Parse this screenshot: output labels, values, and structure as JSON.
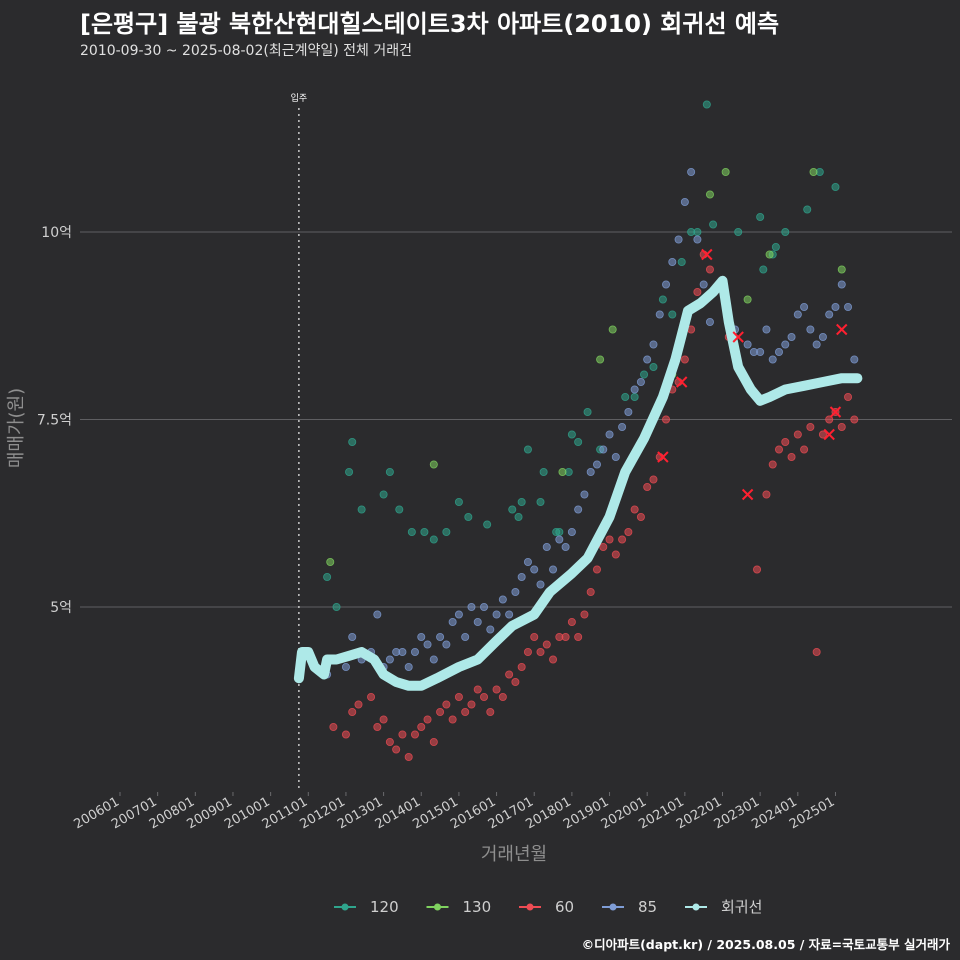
{
  "title": "[은평구] 불광 북한산현대힐스테이트3차 아파트(2010) 회귀선 예측",
  "subtitle": "2010-09-30 ~ 2025-08-02(최근계약일) 전체 거래건",
  "caption": "©디아파트(dapt.kr) / 2025.08.05 / 자료=국토교통부 실거래가",
  "colors": {
    "background": "#2b2b2d",
    "grid": "#5f5f62",
    "series_120": "#2fa58d",
    "series_130": "#7fd25f",
    "series_60": "#ee4c54",
    "series_85": "#7f9dd6",
    "regression": "#aee9e8",
    "marker_x": "#ff2030"
  },
  "chart_data": {
    "type": "scatter",
    "title": "[은평구] 불광 북한산현대힐스테이트3차 아파트(2010) 회귀선 예측",
    "xlabel": "거래년월",
    "ylabel": "매매가(원)",
    "x_range": [
      "2006-01",
      "2025-12"
    ],
    "y_range": [
      2.55,
      11.8
    ],
    "y_unit": "억",
    "x_tick_labels": [
      "200601",
      "200701",
      "200801",
      "200901",
      "201001",
      "201101",
      "201201",
      "201301",
      "201401",
      "201501",
      "201601",
      "201701",
      "201801",
      "201901",
      "202001",
      "202101",
      "202201",
      "202301",
      "202401",
      "202501"
    ],
    "y_ticks": [
      {
        "value": 5,
        "label": "5억"
      },
      {
        "value": 7.5,
        "label": "7.5억"
      },
      {
        "value": 10,
        "label": "10억"
      }
    ],
    "grid": true,
    "vline": {
      "x": "2010-10",
      "label": "입주"
    },
    "legend": {
      "position": "bottom",
      "entries": [
        "120",
        "130",
        "60",
        "85",
        "회귀선"
      ]
    },
    "series": [
      {
        "name": "120",
        "points": [
          [
            "2011-07",
            5.4
          ],
          [
            "2011-10",
            5.0
          ],
          [
            "2012-02",
            6.8
          ],
          [
            "2012-03",
            7.2
          ],
          [
            "2012-06",
            6.3
          ],
          [
            "2013-01",
            6.5
          ],
          [
            "2013-03",
            6.8
          ],
          [
            "2013-06",
            6.3
          ],
          [
            "2013-10",
            6.0
          ],
          [
            "2014-02",
            6.0
          ],
          [
            "2014-05",
            5.9
          ],
          [
            "2014-09",
            6.0
          ],
          [
            "2015-01",
            6.4
          ],
          [
            "2015-04",
            6.2
          ],
          [
            "2015-10",
            6.1
          ],
          [
            "2016-06",
            6.3
          ],
          [
            "2016-08",
            6.2
          ],
          [
            "2016-09",
            6.4
          ],
          [
            "2016-11",
            7.1
          ],
          [
            "2017-03",
            6.4
          ],
          [
            "2017-04",
            6.8
          ],
          [
            "2017-08",
            6.0
          ],
          [
            "2017-09",
            6.0
          ],
          [
            "2017-12",
            6.8
          ],
          [
            "2018-01",
            7.3
          ],
          [
            "2018-03",
            7.2
          ],
          [
            "2018-06",
            7.6
          ],
          [
            "2018-10",
            7.1
          ],
          [
            "2019-09",
            7.8
          ],
          [
            "2019-12",
            8.1
          ],
          [
            "2020-03",
            8.2
          ],
          [
            "2020-06",
            9.1
          ],
          [
            "2020-09",
            8.9
          ],
          [
            "2020-12",
            9.6
          ],
          [
            "2021-03",
            10.0
          ],
          [
            "2021-05",
            10.0
          ],
          [
            "2021-10",
            10.1
          ],
          [
            "2022-06",
            10.0
          ],
          [
            "2023-01",
            10.2
          ],
          [
            "2023-02",
            9.5
          ],
          [
            "2023-06",
            9.8
          ],
          [
            "2023-09",
            10.0
          ],
          [
            "2024-04",
            10.3
          ],
          [
            "2024-08",
            10.8
          ],
          [
            "2025-01",
            10.6
          ],
          [
            "2021-08",
            11.7
          ],
          [
            "2023-05",
            9.7
          ],
          [
            "2019-06",
            7.8
          ]
        ]
      },
      {
        "name": "130",
        "points": [
          [
            "2011-08",
            5.6
          ],
          [
            "2014-05",
            6.9
          ],
          [
            "2017-10",
            6.8
          ],
          [
            "2018-10",
            8.3
          ],
          [
            "2019-02",
            8.7
          ],
          [
            "2020-09",
            8.1
          ],
          [
            "2021-09",
            10.5
          ],
          [
            "2022-02",
            10.8
          ],
          [
            "2022-09",
            9.1
          ],
          [
            "2023-04",
            9.7
          ],
          [
            "2024-06",
            10.8
          ],
          [
            "2025-03",
            9.5
          ]
        ]
      },
      {
        "name": "60",
        "points": [
          [
            "2011-09",
            3.4
          ],
          [
            "2012-01",
            3.3
          ],
          [
            "2012-03",
            3.6
          ],
          [
            "2012-05",
            3.7
          ],
          [
            "2012-09",
            3.8
          ],
          [
            "2012-11",
            3.4
          ],
          [
            "2013-01",
            3.5
          ],
          [
            "2013-03",
            3.2
          ],
          [
            "2013-05",
            3.1
          ],
          [
            "2013-07",
            3.3
          ],
          [
            "2013-09",
            3.0
          ],
          [
            "2013-11",
            3.3
          ],
          [
            "2014-01",
            3.4
          ],
          [
            "2014-03",
            3.5
          ],
          [
            "2014-05",
            3.2
          ],
          [
            "2014-07",
            3.6
          ],
          [
            "2014-09",
            3.7
          ],
          [
            "2014-11",
            3.5
          ],
          [
            "2015-01",
            3.8
          ],
          [
            "2015-03",
            3.6
          ],
          [
            "2015-05",
            3.7
          ],
          [
            "2015-07",
            3.9
          ],
          [
            "2015-09",
            3.8
          ],
          [
            "2015-11",
            3.6
          ],
          [
            "2016-01",
            3.9
          ],
          [
            "2016-03",
            3.8
          ],
          [
            "2016-05",
            4.1
          ],
          [
            "2016-07",
            4.0
          ],
          [
            "2016-09",
            4.2
          ],
          [
            "2016-11",
            4.4
          ],
          [
            "2017-01",
            4.6
          ],
          [
            "2017-03",
            4.4
          ],
          [
            "2017-05",
            4.5
          ],
          [
            "2017-07",
            4.3
          ],
          [
            "2017-09",
            4.6
          ],
          [
            "2017-11",
            4.6
          ],
          [
            "2018-01",
            4.8
          ],
          [
            "2018-03",
            4.6
          ],
          [
            "2018-05",
            4.9
          ],
          [
            "2018-07",
            5.2
          ],
          [
            "2018-09",
            5.5
          ],
          [
            "2018-11",
            5.8
          ],
          [
            "2019-01",
            5.9
          ],
          [
            "2019-03",
            5.7
          ],
          [
            "2019-05",
            5.9
          ],
          [
            "2019-07",
            6.0
          ],
          [
            "2019-09",
            6.3
          ],
          [
            "2019-11",
            6.2
          ],
          [
            "2020-01",
            6.6
          ],
          [
            "2020-03",
            6.7
          ],
          [
            "2020-05",
            7.0
          ],
          [
            "2020-07",
            7.5
          ],
          [
            "2020-09",
            7.9
          ],
          [
            "2020-11",
            8.0
          ],
          [
            "2021-01",
            8.3
          ],
          [
            "2021-03",
            8.7
          ],
          [
            "2021-05",
            9.2
          ],
          [
            "2021-07",
            9.7
          ],
          [
            "2021-09",
            9.5
          ],
          [
            "2022-03",
            8.6
          ],
          [
            "2022-12",
            5.5
          ],
          [
            "2023-03",
            6.5
          ],
          [
            "2023-05",
            6.9
          ],
          [
            "2023-07",
            7.1
          ],
          [
            "2023-09",
            7.2
          ],
          [
            "2023-11",
            7.0
          ],
          [
            "2024-01",
            7.3
          ],
          [
            "2024-03",
            7.1
          ],
          [
            "2024-05",
            7.4
          ],
          [
            "2024-07",
            4.4
          ],
          [
            "2024-09",
            7.3
          ],
          [
            "2024-11",
            7.5
          ],
          [
            "2025-01",
            7.6
          ],
          [
            "2025-03",
            7.4
          ],
          [
            "2025-05",
            7.8
          ],
          [
            "2025-07",
            7.5
          ]
        ]
      },
      {
        "name": "85",
        "points": [
          [
            "2011-07",
            4.1
          ],
          [
            "2011-11",
            4.3
          ],
          [
            "2012-01",
            4.2
          ],
          [
            "2012-03",
            4.6
          ],
          [
            "2012-06",
            4.3
          ],
          [
            "2012-09",
            4.4
          ],
          [
            "2012-11",
            4.9
          ],
          [
            "2013-01",
            4.2
          ],
          [
            "2013-03",
            4.3
          ],
          [
            "2013-05",
            4.4
          ],
          [
            "2013-07",
            4.4
          ],
          [
            "2013-09",
            4.2
          ],
          [
            "2013-11",
            4.4
          ],
          [
            "2014-01",
            4.6
          ],
          [
            "2014-03",
            4.5
          ],
          [
            "2014-05",
            4.3
          ],
          [
            "2014-07",
            4.6
          ],
          [
            "2014-09",
            4.5
          ],
          [
            "2014-11",
            4.8
          ],
          [
            "2015-01",
            4.9
          ],
          [
            "2015-03",
            4.6
          ],
          [
            "2015-05",
            5.0
          ],
          [
            "2015-07",
            4.8
          ],
          [
            "2015-09",
            5.0
          ],
          [
            "2015-11",
            4.7
          ],
          [
            "2016-01",
            4.9
          ],
          [
            "2016-03",
            5.1
          ],
          [
            "2016-05",
            4.9
          ],
          [
            "2016-07",
            5.2
          ],
          [
            "2016-09",
            5.4
          ],
          [
            "2016-11",
            5.6
          ],
          [
            "2017-01",
            5.5
          ],
          [
            "2017-03",
            5.3
          ],
          [
            "2017-05",
            5.8
          ],
          [
            "2017-07",
            5.5
          ],
          [
            "2017-09",
            5.9
          ],
          [
            "2017-11",
            5.8
          ],
          [
            "2018-01",
            6.0
          ],
          [
            "2018-03",
            6.3
          ],
          [
            "2018-05",
            6.5
          ],
          [
            "2018-07",
            6.8
          ],
          [
            "2018-09",
            6.9
          ],
          [
            "2018-11",
            7.1
          ],
          [
            "2019-01",
            7.3
          ],
          [
            "2019-03",
            7.0
          ],
          [
            "2019-05",
            7.4
          ],
          [
            "2019-07",
            7.6
          ],
          [
            "2019-09",
            7.9
          ],
          [
            "2019-11",
            8.0
          ],
          [
            "2020-01",
            8.3
          ],
          [
            "2020-03",
            8.5
          ],
          [
            "2020-05",
            8.9
          ],
          [
            "2020-07",
            9.3
          ],
          [
            "2020-09",
            9.6
          ],
          [
            "2020-11",
            9.9
          ],
          [
            "2021-01",
            10.4
          ],
          [
            "2021-03",
            10.8
          ],
          [
            "2021-05",
            9.9
          ],
          [
            "2021-07",
            9.3
          ],
          [
            "2021-09",
            8.8
          ],
          [
            "2022-05",
            8.7
          ],
          [
            "2022-09",
            8.5
          ],
          [
            "2022-11",
            8.4
          ],
          [
            "2023-01",
            8.4
          ],
          [
            "2023-03",
            8.7
          ],
          [
            "2023-05",
            8.3
          ],
          [
            "2023-07",
            8.4
          ],
          [
            "2023-09",
            8.5
          ],
          [
            "2023-11",
            8.6
          ],
          [
            "2024-01",
            8.9
          ],
          [
            "2024-03",
            9.0
          ],
          [
            "2024-05",
            8.7
          ],
          [
            "2024-07",
            8.5
          ],
          [
            "2024-09",
            8.6
          ],
          [
            "2024-11",
            8.9
          ],
          [
            "2025-01",
            9.0
          ],
          [
            "2025-03",
            9.3
          ],
          [
            "2025-05",
            9.0
          ],
          [
            "2025-07",
            8.3
          ]
        ]
      },
      {
        "name": "회귀선",
        "points": [
          [
            "2010-10",
            4.05
          ],
          [
            "2010-11",
            4.4
          ],
          [
            "2011-01",
            4.4
          ],
          [
            "2011-03",
            4.2
          ],
          [
            "2011-06",
            4.1
          ],
          [
            "2011-07",
            4.3
          ],
          [
            "2011-10",
            4.3
          ],
          [
            "2012-02",
            4.35
          ],
          [
            "2012-06",
            4.4
          ],
          [
            "2012-10",
            4.3
          ],
          [
            "2013-01",
            4.1
          ],
          [
            "2013-05",
            4.0
          ],
          [
            "2013-09",
            3.95
          ],
          [
            "2014-01",
            3.95
          ],
          [
            "2014-06",
            4.05
          ],
          [
            "2015-01",
            4.2
          ],
          [
            "2015-07",
            4.3
          ],
          [
            "2016-01",
            4.55
          ],
          [
            "2016-06",
            4.75
          ],
          [
            "2017-01",
            4.9
          ],
          [
            "2017-06",
            5.2
          ],
          [
            "2018-01",
            5.45
          ],
          [
            "2018-06",
            5.65
          ],
          [
            "2019-01",
            6.2
          ],
          [
            "2019-06",
            6.8
          ],
          [
            "2019-12",
            7.25
          ],
          [
            "2020-06",
            7.8
          ],
          [
            "2020-10",
            8.3
          ],
          [
            "2021-02",
            8.95
          ],
          [
            "2021-06",
            9.05
          ],
          [
            "2021-10",
            9.2
          ],
          [
            "2022-01",
            9.35
          ],
          [
            "2022-03",
            8.8
          ],
          [
            "2022-06",
            8.2
          ],
          [
            "2022-10",
            7.9
          ],
          [
            "2023-01",
            7.75
          ],
          [
            "2023-04",
            7.8
          ],
          [
            "2023-09",
            7.9
          ],
          [
            "2024-03",
            7.95
          ],
          [
            "2024-09",
            8.0
          ],
          [
            "2025-03",
            8.05
          ],
          [
            "2025-08",
            8.05
          ]
        ]
      }
    ],
    "x_markers": [
      [
        "2020-12",
        8.0
      ],
      [
        "2020-06",
        7.0
      ],
      [
        "2021-08",
        9.7
      ],
      [
        "2022-06",
        8.6
      ],
      [
        "2022-09",
        6.5
      ],
      [
        "2024-11",
        7.3
      ],
      [
        "2025-01",
        7.6
      ],
      [
        "2025-03",
        8.7
      ]
    ]
  }
}
